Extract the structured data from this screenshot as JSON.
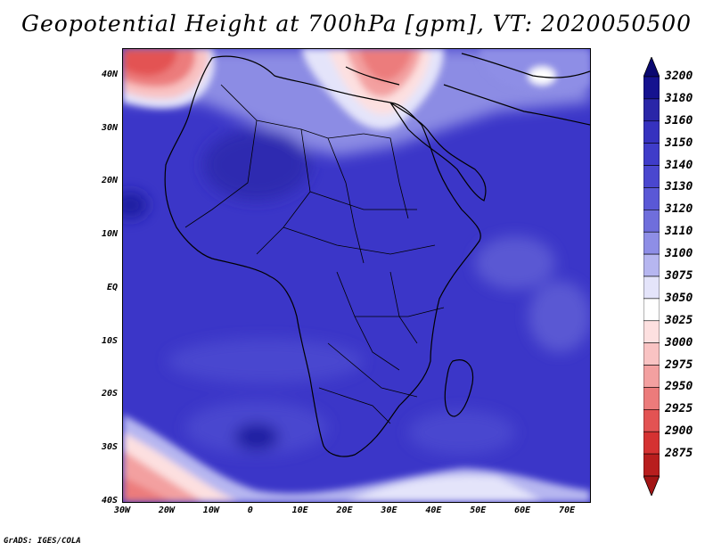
{
  "title": "Geopotential Height at 700hPa [gpm], VT: 2020050500",
  "credit": "GrADS: IGES/COLA",
  "map": {
    "lon_range": [
      -30,
      75
    ],
    "lat_range": [
      -40,
      45
    ],
    "y_axis_labels": [
      "40N",
      "30N",
      "20N",
      "10N",
      "EQ",
      "10S",
      "20S",
      "30S",
      "40S"
    ],
    "y_axis_lats": [
      40,
      30,
      20,
      10,
      0,
      -10,
      -20,
      -30,
      -40
    ],
    "x_axis_labels": [
      "30W",
      "20W",
      "10W",
      "0",
      "10E",
      "20E",
      "30E",
      "40E",
      "50E",
      "60E",
      "70E"
    ],
    "x_axis_lons": [
      -30,
      -20,
      -10,
      0,
      10,
      20,
      30,
      40,
      50,
      60,
      70
    ]
  },
  "colorbar": {
    "labels": [
      "3200",
      "3180",
      "3160",
      "3150",
      "3140",
      "3130",
      "3120",
      "3110",
      "3100",
      "3075",
      "3050",
      "3025",
      "3000",
      "2975",
      "2950",
      "2925",
      "2900",
      "2875"
    ],
    "colors": [
      "#15128f",
      "#2a26a8",
      "#3632bf",
      "#3f3cc9",
      "#4a47cf",
      "#5a58d6",
      "#6f6edc",
      "#8e8ee6",
      "#b6b6f0",
      "#e4e4fa",
      "#ffffff",
      "#fde0e0",
      "#f9c3c3",
      "#f3a0a0",
      "#ec7b7b",
      "#e35353",
      "#d53232",
      "#b81e1e"
    ],
    "top_arrow_color": "#0a0870",
    "bottom_arrow_color": "#a31515"
  }
}
